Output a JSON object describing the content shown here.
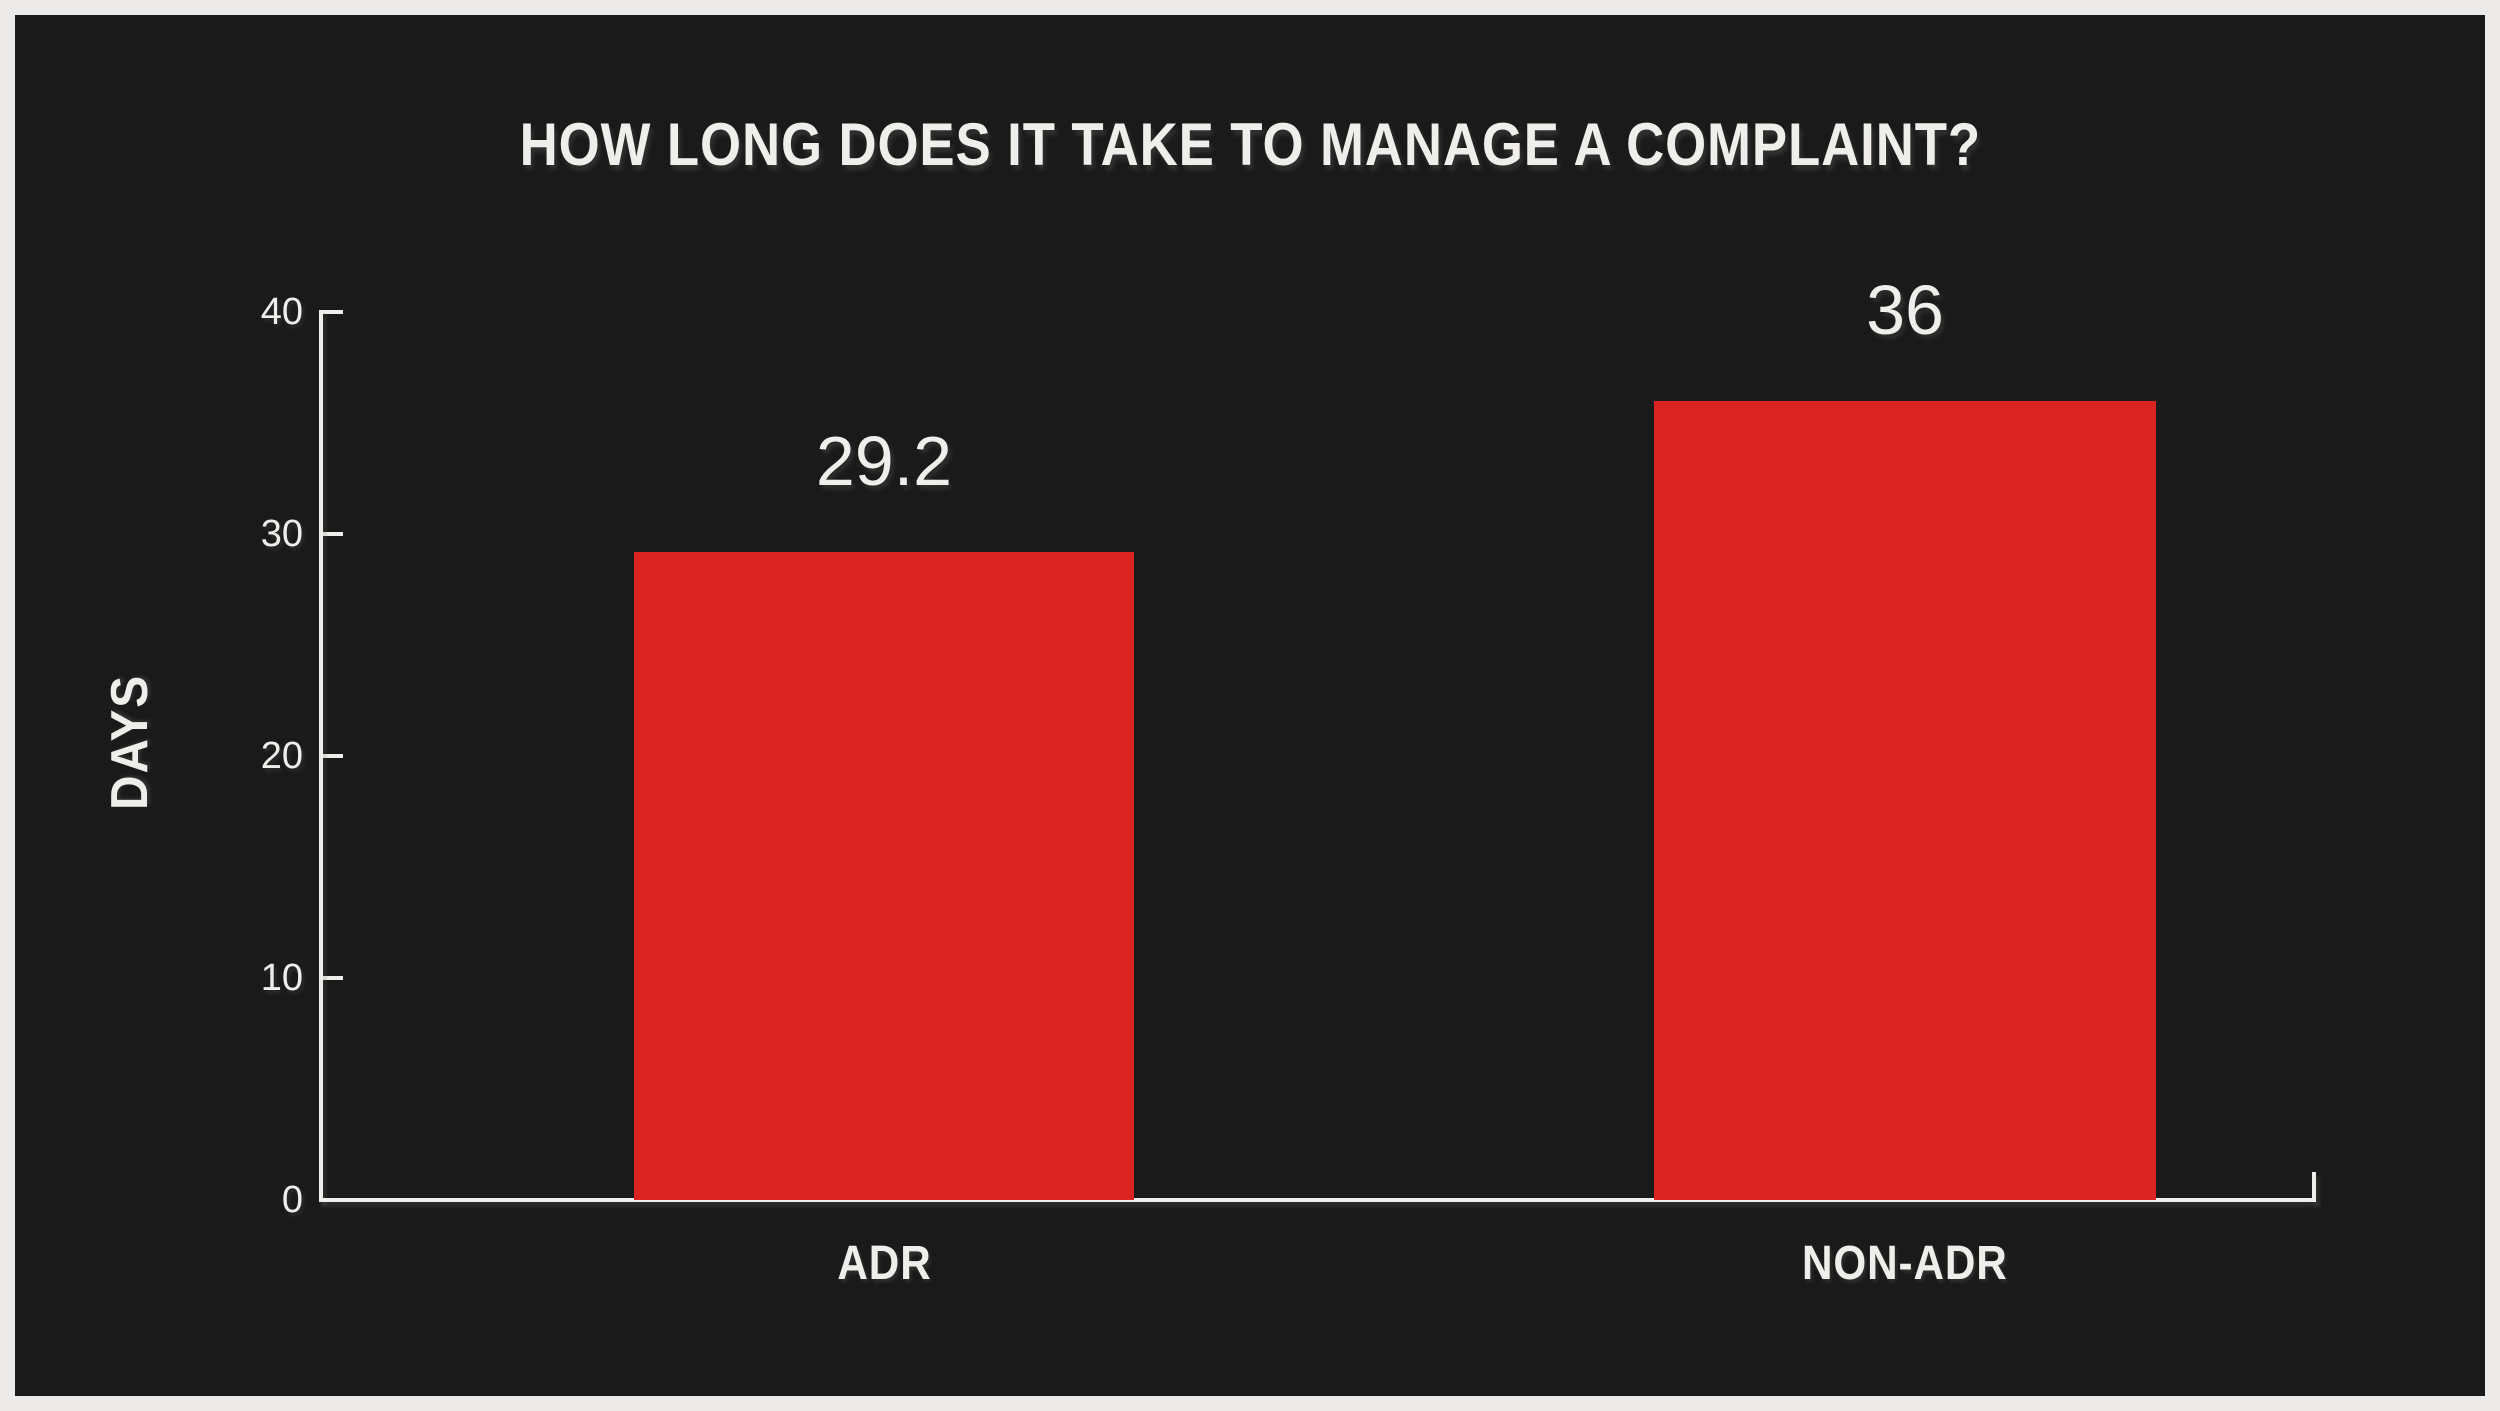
{
  "frame": {
    "outer_bg": "#ecebe9",
    "panel_bg": "#1a1a1a",
    "text_color": "#efeeea"
  },
  "header": {
    "title": "HOW LONG DOES IT TAKE TO MANAGE A COMPLAINT?"
  },
  "y_axis": {
    "label": "DAYS",
    "tick_labels": [
      "40",
      "30",
      "20",
      "10",
      "0"
    ]
  },
  "chart_data": {
    "type": "bar",
    "title": "HOW LONG DOES IT TAKE TO MANAGE A COMPLAINT?",
    "categories": [
      "ADR",
      "NON-ADR"
    ],
    "values": [
      29.2,
      36
    ],
    "value_labels": [
      "29.2",
      "36"
    ],
    "xlabel": "",
    "ylabel": "DAYS",
    "ylim": [
      0,
      40
    ],
    "yticks": [
      0,
      10,
      20,
      30,
      40
    ],
    "grid": false,
    "legend": false,
    "bar_color": "#da2423",
    "background": "#1a1a1a",
    "axis_color": "#efeeea"
  }
}
